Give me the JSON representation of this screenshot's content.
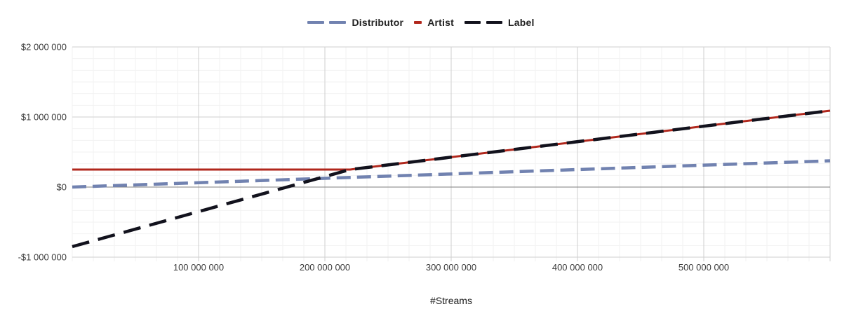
{
  "chart_data": {
    "type": "line",
    "title": "",
    "xlabel": "#Streams",
    "ylabel": "",
    "xlim": [
      0,
      600000000
    ],
    "ylim": [
      -1000000,
      2000000
    ],
    "grid": {
      "major": true,
      "minor": true
    },
    "legend_position": "top",
    "x_ticks": [
      {
        "value": 100000000,
        "label": "100 000 000"
      },
      {
        "value": 200000000,
        "label": "200 000 000"
      },
      {
        "value": 300000000,
        "label": "300 000 000"
      },
      {
        "value": 400000000,
        "label": "400 000 000"
      },
      {
        "value": 500000000,
        "label": "500 000 000"
      }
    ],
    "y_ticks": [
      {
        "value": 2000000,
        "label": "$2 000 000"
      },
      {
        "value": 1000000,
        "label": "$1 000 000"
      },
      {
        "value": 0,
        "label": "$0"
      },
      {
        "value": -1000000,
        "label": "-$1 000 000"
      }
    ],
    "series": [
      {
        "name": "Distributor",
        "color": "#7182b0",
        "line_style": "dashed",
        "points": [
          [
            0,
            0
          ],
          [
            600000000,
            375000
          ]
        ]
      },
      {
        "name": "Artist",
        "color": "#b1271c",
        "line_style": "solid",
        "points": [
          [
            0,
            250000
          ],
          [
            220000000,
            250000
          ],
          [
            600000000,
            1090000
          ]
        ]
      },
      {
        "name": "Label",
        "color": "#12121d",
        "line_style": "dashed",
        "points": [
          [
            0,
            -850000
          ],
          [
            220000000,
            250000
          ],
          [
            600000000,
            1090000
          ]
        ]
      }
    ]
  },
  "colors": {
    "background": "#ffffff",
    "zero_line": "#7e7e7e",
    "major_grid": "#cfcfcf",
    "minor_grid": "#f2f2f2",
    "axis_text": "#3c3c3c",
    "legend_text": "#212121"
  }
}
